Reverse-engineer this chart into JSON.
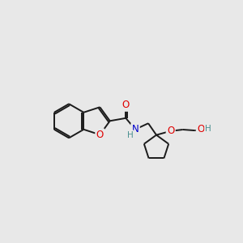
{
  "background_color": "#e8e8e8",
  "bond_color": "#1a1a1a",
  "atom_colors": {
    "O": "#e00000",
    "N": "#0000cc",
    "H_teal": "#4a9090",
    "C": "#1a1a1a"
  },
  "font_size_atom": 8.5,
  "line_width": 1.4,
  "dbo": 0.07,
  "xlim": [
    0,
    10.5
  ],
  "ylim": [
    1.5,
    9.0
  ]
}
